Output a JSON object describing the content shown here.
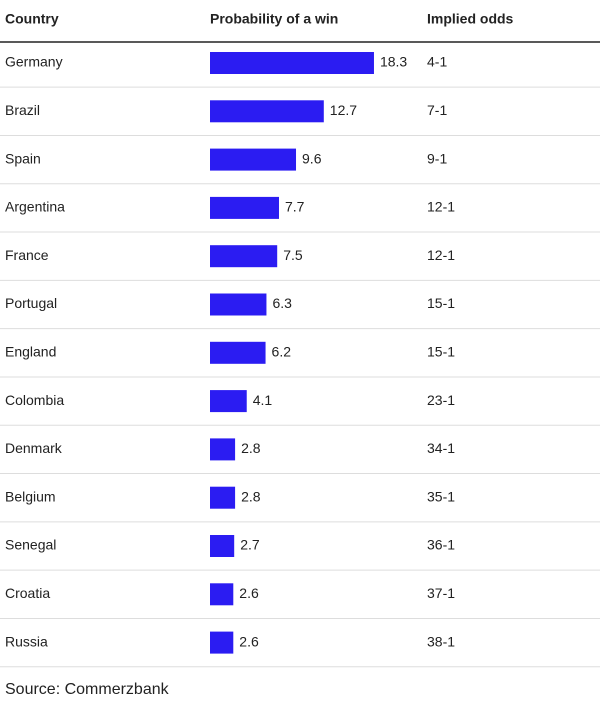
{
  "chart_data": {
    "type": "bar",
    "orientation": "horizontal",
    "column_headers": [
      "Country",
      "Probability of a win",
      "Implied odds"
    ],
    "categories": [
      "Germany",
      "Brazil",
      "Spain",
      "Argentina",
      "France",
      "Portugal",
      "England",
      "Colombia",
      "Denmark",
      "Belgium",
      "Senegal",
      "Croatia",
      "Russia"
    ],
    "values": [
      18.3,
      12.7,
      9.6,
      7.7,
      7.5,
      6.3,
      6.2,
      4.1,
      2.8,
      2.8,
      2.7,
      2.6,
      2.6
    ],
    "implied_odds": [
      "4-1",
      "7-1",
      "9-1",
      "12-1",
      "12-1",
      "15-1",
      "15-1",
      "23-1",
      "34-1",
      "35-1",
      "36-1",
      "37-1",
      "38-1"
    ],
    "color": "#2b1cf2",
    "source": "Source: Commerzbank"
  }
}
